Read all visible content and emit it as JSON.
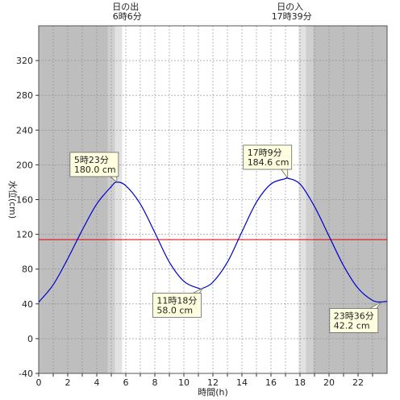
{
  "chart_data": {
    "type": "line",
    "xlabel": "時間(h)",
    "ylabel": "水位(cm)",
    "xlim": [
      0,
      24
    ],
    "ylim": [
      -40,
      360
    ],
    "x_ticks": [
      0,
      2,
      4,
      6,
      8,
      10,
      12,
      14,
      16,
      18,
      20,
      22
    ],
    "y_ticks": [
      -40,
      0,
      40,
      80,
      120,
      160,
      200,
      240,
      280,
      320
    ],
    "grid": true,
    "reference_line_value": 114,
    "series": [
      {
        "color": "#0000cc",
        "x": [
          0,
          1,
          2,
          3,
          4,
          5,
          5.38,
          6,
          7,
          8,
          9,
          10,
          11,
          11.3,
          12,
          13,
          14,
          15,
          16,
          17,
          17.15,
          18,
          19,
          20,
          21,
          22,
          23,
          23.6,
          24
        ],
        "y": [
          42,
          62,
          92,
          125,
          155,
          175,
          180,
          176,
          155,
          122,
          88,
          66,
          58,
          58,
          65,
          88,
          123,
          157,
          178,
          184,
          184.6,
          178,
          152,
          118,
          84,
          58,
          44,
          42.2,
          43
        ]
      }
    ],
    "sun": {
      "sunrise": {
        "title": "日の出",
        "time_label": "6時6分",
        "hour": 6.1
      },
      "sunset": {
        "title": "日の入",
        "time_label": "17時39分",
        "hour": 17.65
      }
    },
    "annotations": [
      {
        "time": "5時23分",
        "value": "180.0 cm",
        "x": 5.38,
        "y": 180.0,
        "position": "above"
      },
      {
        "time": "11時18分",
        "value": "58.0 cm",
        "x": 11.3,
        "y": 58.0,
        "position": "below"
      },
      {
        "time": "17時9分",
        "value": "184.6 cm",
        "x": 17.15,
        "y": 184.6,
        "position": "above"
      },
      {
        "time": "23時36分",
        "value": "42.2 cm",
        "x": 23.6,
        "y": 42.2,
        "position": "below"
      }
    ]
  },
  "colors": {
    "night": "#bebebe",
    "twilight_outer": "#cfcfcf",
    "twilight_inner": "#e2e2e2",
    "day": "#ffffff",
    "grid": "#888888",
    "curve": "#0000cc",
    "reference_line": "#dd0000",
    "callout_fill": "#ffffe0"
  }
}
